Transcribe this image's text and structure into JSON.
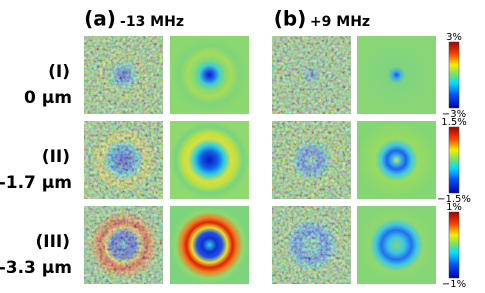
{
  "columns": [
    {
      "label": "(a)",
      "detuning": "-13 MHz"
    },
    {
      "label": "(b)",
      "detuning": "+9 MHz"
    }
  ],
  "rows": [
    {
      "label": "(I)",
      "depth": "0 μm",
      "colorbar_max": "3%",
      "colorbar_min": "−3%"
    },
    {
      "label": "(II)",
      "depth": "-1.7 μm",
      "colorbar_max": "1.5%",
      "colorbar_min": "−1.5%"
    },
    {
      "label": "(III)",
      "depth": "-3.3 μm",
      "colorbar_max": "1%",
      "colorbar_min": "−1%"
    }
  ]
}
